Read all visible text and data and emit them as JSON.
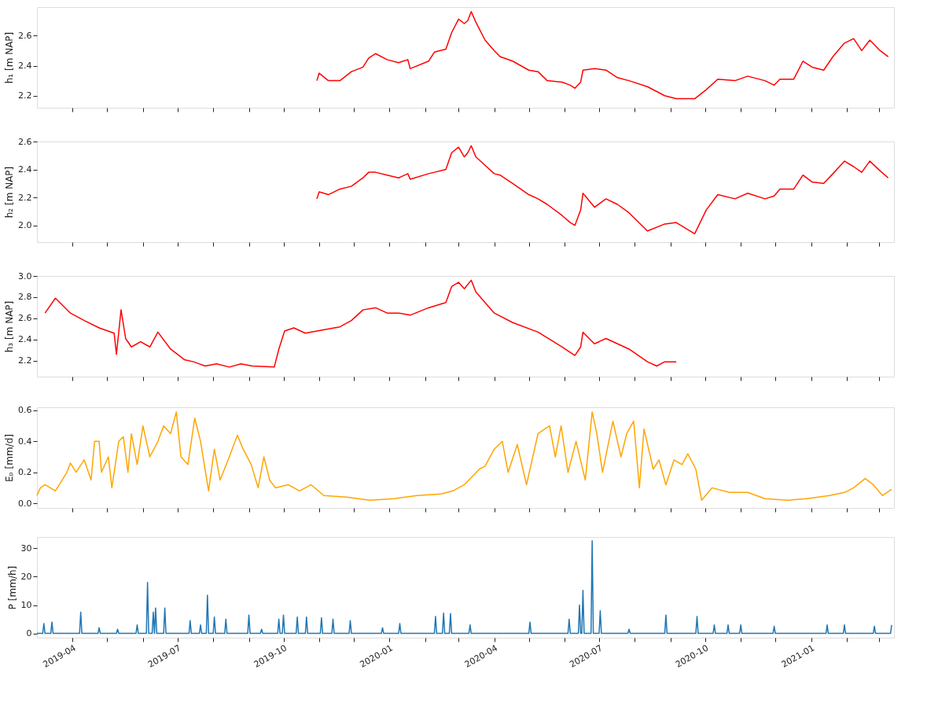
{
  "chart_data": [
    {
      "type": "line",
      "ylabel": "h₁ [m NAP]",
      "xlim": [
        "2019-03-01",
        "2021-03-14"
      ],
      "ylim": [
        2.12,
        2.79
      ],
      "yticks": [
        2.2,
        2.4,
        2.6
      ],
      "tick_labels": "y",
      "grid": false,
      "marker": "none",
      "line_style": "solid",
      "xticks": [
        {
          "value": "2019-04",
          "label": null
        },
        {
          "value": "2019-05",
          "label": null
        },
        {
          "value": "2019-06",
          "label": null
        },
        {
          "value": "2019-07",
          "label": null
        },
        {
          "value": "2019-08",
          "label": null
        },
        {
          "value": "2019-09",
          "label": null
        },
        {
          "value": "2019-10",
          "label": null
        },
        {
          "value": "2019-11",
          "label": null
        },
        {
          "value": "2019-12",
          "label": null
        },
        {
          "value": "2020-01",
          "label": null
        },
        {
          "value": "2020-02",
          "label": null
        },
        {
          "value": "2020-03",
          "label": null
        },
        {
          "value": "2020-04",
          "label": null
        },
        {
          "value": "2020-05",
          "label": null
        },
        {
          "value": "2020-06",
          "label": null
        },
        {
          "value": "2020-07",
          "label": null
        },
        {
          "value": "2020-08",
          "label": null
        },
        {
          "value": "2020-09",
          "label": null
        },
        {
          "value": "2020-10",
          "label": null
        },
        {
          "value": "2020-11",
          "label": null
        },
        {
          "value": "2020-12",
          "label": null
        },
        {
          "value": "2021-01",
          "label": null
        },
        {
          "value": "2021-02",
          "label": null
        },
        {
          "value": "2021-03",
          "label": null
        }
      ],
      "series": [
        {
          "color": "#ff0000",
          "x": [
            "2019-10-30",
            "2019-11-01",
            "2019-11-09",
            "2019-11-19",
            "2019-11-29",
            "2019-12-09",
            "2019-12-14",
            "2019-12-20",
            "2019-12-30",
            "2020-01-09",
            "2020-01-17",
            "2020-01-19",
            "2020-02-04",
            "2020-02-09",
            "2020-02-19",
            "2020-02-24",
            "2020-03-01",
            "2020-03-06",
            "2020-03-09",
            "2020-03-12",
            "2020-03-16",
            "2020-03-24",
            "2020-04-01",
            "2020-04-06",
            "2020-04-17",
            "2020-05-01",
            "2020-05-09",
            "2020-05-17",
            "2020-05-30",
            "2020-06-06",
            "2020-06-10",
            "2020-06-15",
            "2020-06-17",
            "2020-06-27",
            "2020-07-07",
            "2020-07-17",
            "2020-07-27",
            "2020-08-12",
            "2020-08-27",
            "2020-09-06",
            "2020-09-22",
            "2020-10-02",
            "2020-10-12",
            "2020-10-27",
            "2020-11-07",
            "2020-11-22",
            "2020-11-30",
            "2020-12-05",
            "2020-12-17",
            "2020-12-25",
            "2021-01-02",
            "2021-01-12",
            "2021-01-20",
            "2021-01-30",
            "2021-02-07",
            "2021-02-14",
            "2021-02-21",
            "2021-03-02",
            "2021-03-09"
          ],
          "values": [
            2.3,
            2.35,
            2.3,
            2.3,
            2.36,
            2.39,
            2.45,
            2.48,
            2.44,
            2.42,
            2.44,
            2.38,
            2.43,
            2.49,
            2.51,
            2.62,
            2.71,
            2.68,
            2.7,
            2.76,
            2.69,
            2.57,
            2.5,
            2.46,
            2.43,
            2.37,
            2.36,
            2.3,
            2.29,
            2.27,
            2.25,
            2.29,
            2.37,
            2.38,
            2.37,
            2.32,
            2.3,
            2.26,
            2.2,
            2.18,
            2.18,
            2.24,
            2.31,
            2.3,
            2.33,
            2.3,
            2.27,
            2.31,
            2.31,
            2.43,
            2.39,
            2.37,
            2.46,
            2.55,
            2.58,
            2.5,
            2.57,
            2.5,
            2.46
          ]
        }
      ]
    },
    {
      "type": "line",
      "ylabel": "h₂ [m NAP]",
      "xlim": [
        "2019-03-01",
        "2021-03-14"
      ],
      "ylim": [
        1.88,
        2.6
      ],
      "yticks": [
        {
          "value": 2.0,
          "label": "2.0"
        },
        2.2,
        2.4,
        2.6
      ],
      "tick_labels": "y",
      "grid": false,
      "marker": "none",
      "line_style": "solid",
      "xticks": [
        {
          "value": "2019-04",
          "label": null
        },
        {
          "value": "2019-05",
          "label": null
        },
        {
          "value": "2019-06",
          "label": null
        },
        {
          "value": "2019-07",
          "label": null
        },
        {
          "value": "2019-08",
          "label": null
        },
        {
          "value": "2019-09",
          "label": null
        },
        {
          "value": "2019-10",
          "label": null
        },
        {
          "value": "2019-11",
          "label": null
        },
        {
          "value": "2019-12",
          "label": null
        },
        {
          "value": "2020-01",
          "label": null
        },
        {
          "value": "2020-02",
          "label": null
        },
        {
          "value": "2020-03",
          "label": null
        },
        {
          "value": "2020-04",
          "label": null
        },
        {
          "value": "2020-05",
          "label": null
        },
        {
          "value": "2020-06",
          "label": null
        },
        {
          "value": "2020-07",
          "label": null
        },
        {
          "value": "2020-08",
          "label": null
        },
        {
          "value": "2020-09",
          "label": null
        },
        {
          "value": "2020-10",
          "label": null
        },
        {
          "value": "2020-11",
          "label": null
        },
        {
          "value": "2020-12",
          "label": null
        },
        {
          "value": "2021-01",
          "label": null
        },
        {
          "value": "2021-02",
          "label": null
        },
        {
          "value": "2021-03",
          "label": null
        }
      ],
      "series": [
        {
          "color": "#ff0000",
          "x": [
            "2019-10-30",
            "2019-11-01",
            "2019-11-09",
            "2019-11-19",
            "2019-11-29",
            "2019-12-09",
            "2019-12-14",
            "2019-12-20",
            "2019-12-30",
            "2020-01-09",
            "2020-01-17",
            "2020-01-19",
            "2020-02-04",
            "2020-02-09",
            "2020-02-19",
            "2020-02-24",
            "2020-03-01",
            "2020-03-06",
            "2020-03-09",
            "2020-03-12",
            "2020-03-16",
            "2020-03-24",
            "2020-04-01",
            "2020-04-06",
            "2020-04-17",
            "2020-05-01",
            "2020-05-09",
            "2020-05-17",
            "2020-05-30",
            "2020-06-06",
            "2020-06-10",
            "2020-06-15",
            "2020-06-17",
            "2020-06-27",
            "2020-07-07",
            "2020-07-17",
            "2020-07-27",
            "2020-08-12",
            "2020-08-27",
            "2020-09-06",
            "2020-09-22",
            "2020-10-02",
            "2020-10-12",
            "2020-10-27",
            "2020-11-07",
            "2020-11-22",
            "2020-11-30",
            "2020-12-05",
            "2020-12-17",
            "2020-12-25",
            "2021-01-02",
            "2021-01-12",
            "2021-01-20",
            "2021-01-30",
            "2021-02-07",
            "2021-02-14",
            "2021-02-21",
            "2021-03-02",
            "2021-03-09"
          ],
          "values": [
            2.19,
            2.24,
            2.22,
            2.26,
            2.28,
            2.34,
            2.38,
            2.38,
            2.36,
            2.34,
            2.37,
            2.33,
            2.37,
            2.38,
            2.4,
            2.52,
            2.56,
            2.49,
            2.52,
            2.57,
            2.49,
            2.43,
            2.37,
            2.36,
            2.3,
            2.22,
            2.19,
            2.15,
            2.07,
            2.02,
            2.0,
            2.11,
            2.23,
            2.13,
            2.19,
            2.15,
            2.09,
            1.96,
            2.01,
            2.02,
            1.94,
            2.11,
            2.22,
            2.19,
            2.23,
            2.19,
            2.21,
            2.26,
            2.26,
            2.36,
            2.31,
            2.3,
            2.37,
            2.46,
            2.42,
            2.38,
            2.46,
            2.39,
            2.34
          ]
        }
      ]
    },
    {
      "type": "line",
      "ylabel": "h₃ [m NAP]",
      "xlim": [
        "2019-03-01",
        "2021-03-14"
      ],
      "ylim": [
        2.05,
        3.0
      ],
      "yticks": [
        2.2,
        2.4,
        2.6,
        2.8,
        {
          "value": 3.0,
          "label": "3.0"
        }
      ],
      "tick_labels": "y",
      "grid": false,
      "marker": "none",
      "line_style": "solid",
      "xticks": [
        {
          "value": "2019-04",
          "label": null
        },
        {
          "value": "2019-05",
          "label": null
        },
        {
          "value": "2019-06",
          "label": null
        },
        {
          "value": "2019-07",
          "label": null
        },
        {
          "value": "2019-08",
          "label": null
        },
        {
          "value": "2019-09",
          "label": null
        },
        {
          "value": "2019-10",
          "label": null
        },
        {
          "value": "2019-11",
          "label": null
        },
        {
          "value": "2019-12",
          "label": null
        },
        {
          "value": "2020-01",
          "label": null
        },
        {
          "value": "2020-02",
          "label": null
        },
        {
          "value": "2020-03",
          "label": null
        },
        {
          "value": "2020-04",
          "label": null
        },
        {
          "value": "2020-05",
          "label": null
        },
        {
          "value": "2020-06",
          "label": null
        },
        {
          "value": "2020-07",
          "label": null
        },
        {
          "value": "2020-08",
          "label": null
        },
        {
          "value": "2020-09",
          "label": null
        },
        {
          "value": "2020-10",
          "label": null
        },
        {
          "value": "2020-11",
          "label": null
        },
        {
          "value": "2020-12",
          "label": null
        },
        {
          "value": "2021-01",
          "label": null
        },
        {
          "value": "2021-02",
          "label": null
        },
        {
          "value": "2021-03",
          "label": null
        }
      ],
      "series": [
        {
          "color": "#ff0000",
          "x": [
            "2019-03-08",
            "2019-03-17",
            "2019-03-30",
            "2019-04-11",
            "2019-04-24",
            "2019-05-07",
            "2019-05-09",
            "2019-05-13",
            "2019-05-17",
            "2019-05-22",
            "2019-05-30",
            "2019-06-07",
            "2019-06-14",
            "2019-06-25",
            "2019-07-07",
            "2019-07-15",
            "2019-07-25",
            "2019-08-04",
            "2019-08-15",
            "2019-08-25",
            "2019-09-04",
            "2019-09-23",
            "2019-09-27",
            "2019-10-02",
            "2019-10-10",
            "2019-10-20",
            "2019-10-30",
            "2019-11-19",
            "2019-11-29",
            "2019-12-09",
            "2019-12-20",
            "2019-12-30",
            "2020-01-09",
            "2020-01-19",
            "2020-02-04",
            "2020-02-19",
            "2020-02-24",
            "2020-03-01",
            "2020-03-06",
            "2020-03-12",
            "2020-03-16",
            "2020-04-01",
            "2020-04-17",
            "2020-05-09",
            "2020-05-30",
            "2020-06-10",
            "2020-06-15",
            "2020-06-17",
            "2020-06-27",
            "2020-07-07",
            "2020-07-17",
            "2020-07-27",
            "2020-08-12",
            "2020-08-20",
            "2020-08-27",
            "2020-09-06"
          ],
          "values": [
            2.65,
            2.79,
            2.65,
            2.58,
            2.51,
            2.46,
            2.26,
            2.68,
            2.41,
            2.33,
            2.38,
            2.33,
            2.47,
            2.31,
            2.21,
            2.19,
            2.15,
            2.17,
            2.14,
            2.17,
            2.15,
            2.14,
            2.31,
            2.48,
            2.51,
            2.46,
            2.48,
            2.52,
            2.58,
            2.68,
            2.7,
            2.65,
            2.65,
            2.63,
            2.7,
            2.75,
            2.9,
            2.94,
            2.88,
            2.96,
            2.85,
            2.65,
            2.56,
            2.47,
            2.33,
            2.25,
            2.33,
            2.47,
            2.36,
            2.41,
            2.36,
            2.31,
            2.19,
            2.15,
            2.19,
            2.19
          ]
        }
      ]
    },
    {
      "type": "line",
      "ylabel": "Eₚ [mm/d]",
      "xlim": [
        "2019-03-01",
        "2021-03-14"
      ],
      "ylim": [
        -0.03,
        0.62
      ],
      "yticks": [
        {
          "value": 0.0,
          "label": "0.0"
        },
        0.2,
        0.4,
        0.6
      ],
      "tick_labels": "y",
      "grid": false,
      "marker": "none",
      "line_style": "solid",
      "xticks": [
        {
          "value": "2019-04",
          "label": null
        },
        {
          "value": "2019-05",
          "label": null
        },
        {
          "value": "2019-06",
          "label": null
        },
        {
          "value": "2019-07",
          "label": null
        },
        {
          "value": "2019-08",
          "label": null
        },
        {
          "value": "2019-09",
          "label": null
        },
        {
          "value": "2019-10",
          "label": null
        },
        {
          "value": "2019-11",
          "label": null
        },
        {
          "value": "2019-12",
          "label": null
        },
        {
          "value": "2020-01",
          "label": null
        },
        {
          "value": "2020-02",
          "label": null
        },
        {
          "value": "2020-03",
          "label": null
        },
        {
          "value": "2020-04",
          "label": null
        },
        {
          "value": "2020-05",
          "label": null
        },
        {
          "value": "2020-06",
          "label": null
        },
        {
          "value": "2020-07",
          "label": null
        },
        {
          "value": "2020-08",
          "label": null
        },
        {
          "value": "2020-09",
          "label": null
        },
        {
          "value": "2020-10",
          "label": null
        },
        {
          "value": "2020-11",
          "label": null
        },
        {
          "value": "2020-12",
          "label": null
        },
        {
          "value": "2021-01",
          "label": null
        },
        {
          "value": "2021-02",
          "label": null
        },
        {
          "value": "2021-03",
          "label": null
        }
      ],
      "series": [
        {
          "color": "#ffa500",
          "x": [
            "2019-03-01",
            "2019-03-04",
            "2019-03-08",
            "2019-03-17",
            "2019-03-22",
            "2019-03-27",
            "2019-03-30",
            "2019-04-04",
            "2019-04-11",
            "2019-04-17",
            "2019-04-20",
            "2019-04-24",
            "2019-04-26",
            "2019-05-02",
            "2019-05-05",
            "2019-05-11",
            "2019-05-15",
            "2019-05-19",
            "2019-05-22",
            "2019-05-27",
            "2019-06-01",
            "2019-06-07",
            "2019-06-14",
            "2019-06-19",
            "2019-06-25",
            "2019-06-30",
            "2019-07-04",
            "2019-07-10",
            "2019-07-16",
            "2019-07-21",
            "2019-07-28",
            "2019-08-02",
            "2019-08-07",
            "2019-08-15",
            "2019-08-22",
            "2019-08-27",
            "2019-09-03",
            "2019-09-09",
            "2019-09-14",
            "2019-09-19",
            "2019-09-24",
            "2019-10-05",
            "2019-10-15",
            "2019-10-25",
            "2019-11-05",
            "2019-11-25",
            "2019-12-15",
            "2020-01-05",
            "2020-01-25",
            "2020-02-15",
            "2020-02-25",
            "2020-03-06",
            "2020-03-19",
            "2020-03-24",
            "2020-04-01",
            "2020-04-08",
            "2020-04-13",
            "2020-04-21",
            "2020-04-29",
            "2020-05-09",
            "2020-05-19",
            "2020-05-24",
            "2020-05-29",
            "2020-06-04",
            "2020-06-11",
            "2020-06-19",
            "2020-06-25",
            "2020-06-29",
            "2020-07-04",
            "2020-07-13",
            "2020-07-20",
            "2020-07-25",
            "2020-07-31",
            "2020-08-05",
            "2020-08-09",
            "2020-08-17",
            "2020-08-22",
            "2020-08-28",
            "2020-09-04",
            "2020-09-11",
            "2020-09-16",
            "2020-09-23",
            "2020-09-28",
            "2020-10-07",
            "2020-10-22",
            "2020-11-07",
            "2020-11-22",
            "2020-12-12",
            "2020-12-28",
            "2021-01-17",
            "2021-01-30",
            "2021-02-07",
            "2021-02-17",
            "2021-02-24",
            "2021-03-04",
            "2021-03-12"
          ],
          "values": [
            0.05,
            0.1,
            0.12,
            0.08,
            0.14,
            0.2,
            0.26,
            0.2,
            0.28,
            0.15,
            0.4,
            0.4,
            0.2,
            0.3,
            0.1,
            0.4,
            0.43,
            0.2,
            0.45,
            0.25,
            0.5,
            0.3,
            0.4,
            0.5,
            0.45,
            0.59,
            0.3,
            0.25,
            0.55,
            0.4,
            0.08,
            0.35,
            0.15,
            0.3,
            0.44,
            0.35,
            0.25,
            0.1,
            0.3,
            0.15,
            0.1,
            0.12,
            0.08,
            0.12,
            0.05,
            0.04,
            0.02,
            0.03,
            0.05,
            0.06,
            0.08,
            0.12,
            0.22,
            0.24,
            0.35,
            0.4,
            0.2,
            0.38,
            0.12,
            0.45,
            0.5,
            0.3,
            0.5,
            0.2,
            0.4,
            0.15,
            0.59,
            0.45,
            0.2,
            0.53,
            0.3,
            0.45,
            0.53,
            0.1,
            0.48,
            0.22,
            0.28,
            0.12,
            0.28,
            0.25,
            0.32,
            0.22,
            0.02,
            0.1,
            0.07,
            0.07,
            0.03,
            0.02,
            0.03,
            0.05,
            0.07,
            0.1,
            0.16,
            0.12,
            0.05,
            0.09
          ]
        }
      ]
    },
    {
      "type": "line",
      "ylabel": "P [mm/h]",
      "xlim": [
        "2019-03-01",
        "2021-03-14"
      ],
      "ylim": [
        -1.5,
        34
      ],
      "yticks": [
        0,
        10,
        20,
        30
      ],
      "grid": false,
      "marker": "none",
      "line_style": "solid",
      "xticks": [
        {
          "value": "2019-04",
          "label": "2019-04"
        },
        {
          "value": "2019-05",
          "label": null
        },
        {
          "value": "2019-06",
          "label": null
        },
        {
          "value": "2019-07",
          "label": "2019-07"
        },
        {
          "value": "2019-08",
          "label": null
        },
        {
          "value": "2019-09",
          "label": null
        },
        {
          "value": "2019-10",
          "label": "2019-10"
        },
        {
          "value": "2019-11",
          "label": null
        },
        {
          "value": "2019-12",
          "label": null
        },
        {
          "value": "2020-01",
          "label": "2020-01"
        },
        {
          "value": "2020-02",
          "label": null
        },
        {
          "value": "2020-03",
          "label": null
        },
        {
          "value": "2020-04",
          "label": "2020-04"
        },
        {
          "value": "2020-05",
          "label": null
        },
        {
          "value": "2020-06",
          "label": null
        },
        {
          "value": "2020-07",
          "label": "2020-07"
        },
        {
          "value": "2020-08",
          "label": null
        },
        {
          "value": "2020-09",
          "label": null
        },
        {
          "value": "2020-10",
          "label": "2020-10"
        },
        {
          "value": "2020-11",
          "label": null
        },
        {
          "value": "2020-12",
          "label": null
        },
        {
          "value": "2021-01",
          "label": "2021-01"
        },
        {
          "value": "2021-02",
          "label": null
        },
        {
          "value": "2021-03",
          "label": null
        }
      ],
      "series": [
        {
          "color": "#1f77b4",
          "x": [
            "2019-03-01",
            "2019-03-06",
            "2019-03-07",
            "2019-03-08",
            "2019-03-13",
            "2019-03-14",
            "2019-03-15",
            "2019-04-07",
            "2019-04-08",
            "2019-04-09",
            "2019-04-23",
            "2019-04-24",
            "2019-04-25",
            "2019-05-09",
            "2019-05-10",
            "2019-05-11",
            "2019-05-26",
            "2019-05-27",
            "2019-05-28",
            "2019-06-04",
            "2019-06-05",
            "2019-06-06",
            "2019-06-09",
            "2019-06-10",
            "2019-06-11",
            "2019-06-12",
            "2019-06-13",
            "2019-06-19",
            "2019-06-20",
            "2019-06-21",
            "2019-07-11",
            "2019-07-12",
            "2019-07-13",
            "2019-07-20",
            "2019-07-21",
            "2019-07-22",
            "2019-07-26",
            "2019-07-27",
            "2019-07-28",
            "2019-08-01",
            "2019-08-02",
            "2019-08-03",
            "2019-08-11",
            "2019-08-12",
            "2019-08-13",
            "2019-08-31",
            "2019-09-01",
            "2019-09-02",
            "2019-09-11",
            "2019-09-12",
            "2019-09-13",
            "2019-09-26",
            "2019-09-27",
            "2019-09-28",
            "2019-09-30",
            "2019-10-01",
            "2019-10-02",
            "2019-10-12",
            "2019-10-13",
            "2019-10-14",
            "2019-10-20",
            "2019-10-21",
            "2019-10-22",
            "2019-11-02",
            "2019-11-03",
            "2019-11-04",
            "2019-11-12",
            "2019-11-13",
            "2019-11-14",
            "2019-11-27",
            "2019-11-28",
            "2019-11-29",
            "2019-12-25",
            "2019-12-26",
            "2019-12-27",
            "2020-01-09",
            "2020-01-10",
            "2020-01-11",
            "2020-02-09",
            "2020-02-10",
            "2020-02-11",
            "2020-02-16",
            "2020-02-17",
            "2020-02-18",
            "2020-02-22",
            "2020-02-23",
            "2020-02-24",
            "2020-03-10",
            "2020-03-11",
            "2020-03-12",
            "2020-05-01",
            "2020-05-02",
            "2020-05-03",
            "2020-06-04",
            "2020-06-05",
            "2020-06-06",
            "2020-06-13",
            "2020-06-14",
            "2020-06-15",
            "2020-06-16",
            "2020-06-17",
            "2020-06-18",
            "2020-06-24",
            "2020-06-25",
            "2020-06-26",
            "2020-07-01",
            "2020-07-02",
            "2020-07-03",
            "2020-07-26",
            "2020-07-27",
            "2020-07-28",
            "2020-08-27",
            "2020-08-28",
            "2020-08-29",
            "2020-09-23",
            "2020-09-24",
            "2020-09-25",
            "2020-10-08",
            "2020-10-09",
            "2020-10-10",
            "2020-10-20",
            "2020-10-21",
            "2020-10-22",
            "2020-10-31",
            "2020-11-01",
            "2020-11-02",
            "2020-11-29",
            "2020-11-30",
            "2020-12-01",
            "2021-01-14",
            "2021-01-15",
            "2021-01-16",
            "2021-01-29",
            "2021-01-30",
            "2021-01-31",
            "2021-02-24",
            "2021-02-25",
            "2021-02-26",
            "2021-03-11",
            "2021-03-12"
          ],
          "values": [
            0,
            0,
            3.5,
            0,
            0,
            4,
            0,
            0,
            7.5,
            0,
            0,
            2,
            0,
            0,
            1.5,
            0,
            0,
            3,
            0,
            0,
            18,
            0,
            0,
            7.5,
            0,
            9,
            0,
            0,
            9,
            0,
            0,
            4.5,
            0,
            0,
            3,
            0,
            0,
            13.5,
            0,
            0,
            5.8,
            0,
            0,
            5,
            0,
            0,
            6.5,
            0,
            0,
            1.5,
            0,
            0,
            5,
            0,
            0,
            6.5,
            0,
            0,
            5.8,
            0,
            0,
            5.8,
            0,
            0,
            5.5,
            0,
            0,
            5,
            0,
            0,
            4.5,
            0,
            0,
            2,
            0,
            0,
            3.5,
            0,
            0,
            6,
            0,
            0,
            7.2,
            0,
            0,
            7,
            0,
            0,
            3,
            0,
            0,
            4,
            0,
            0,
            5,
            0,
            0,
            10,
            0,
            0,
            15.2,
            0,
            0,
            32.7,
            0,
            0,
            8,
            0,
            0,
            1.5,
            0,
            0,
            6.5,
            0,
            0,
            6,
            0,
            0,
            3,
            0,
            0,
            3,
            0,
            0,
            3,
            0,
            0,
            2.5,
            0,
            0,
            3,
            0,
            0,
            3,
            0,
            0,
            2.5,
            0,
            0,
            3
          ]
        }
      ]
    }
  ]
}
